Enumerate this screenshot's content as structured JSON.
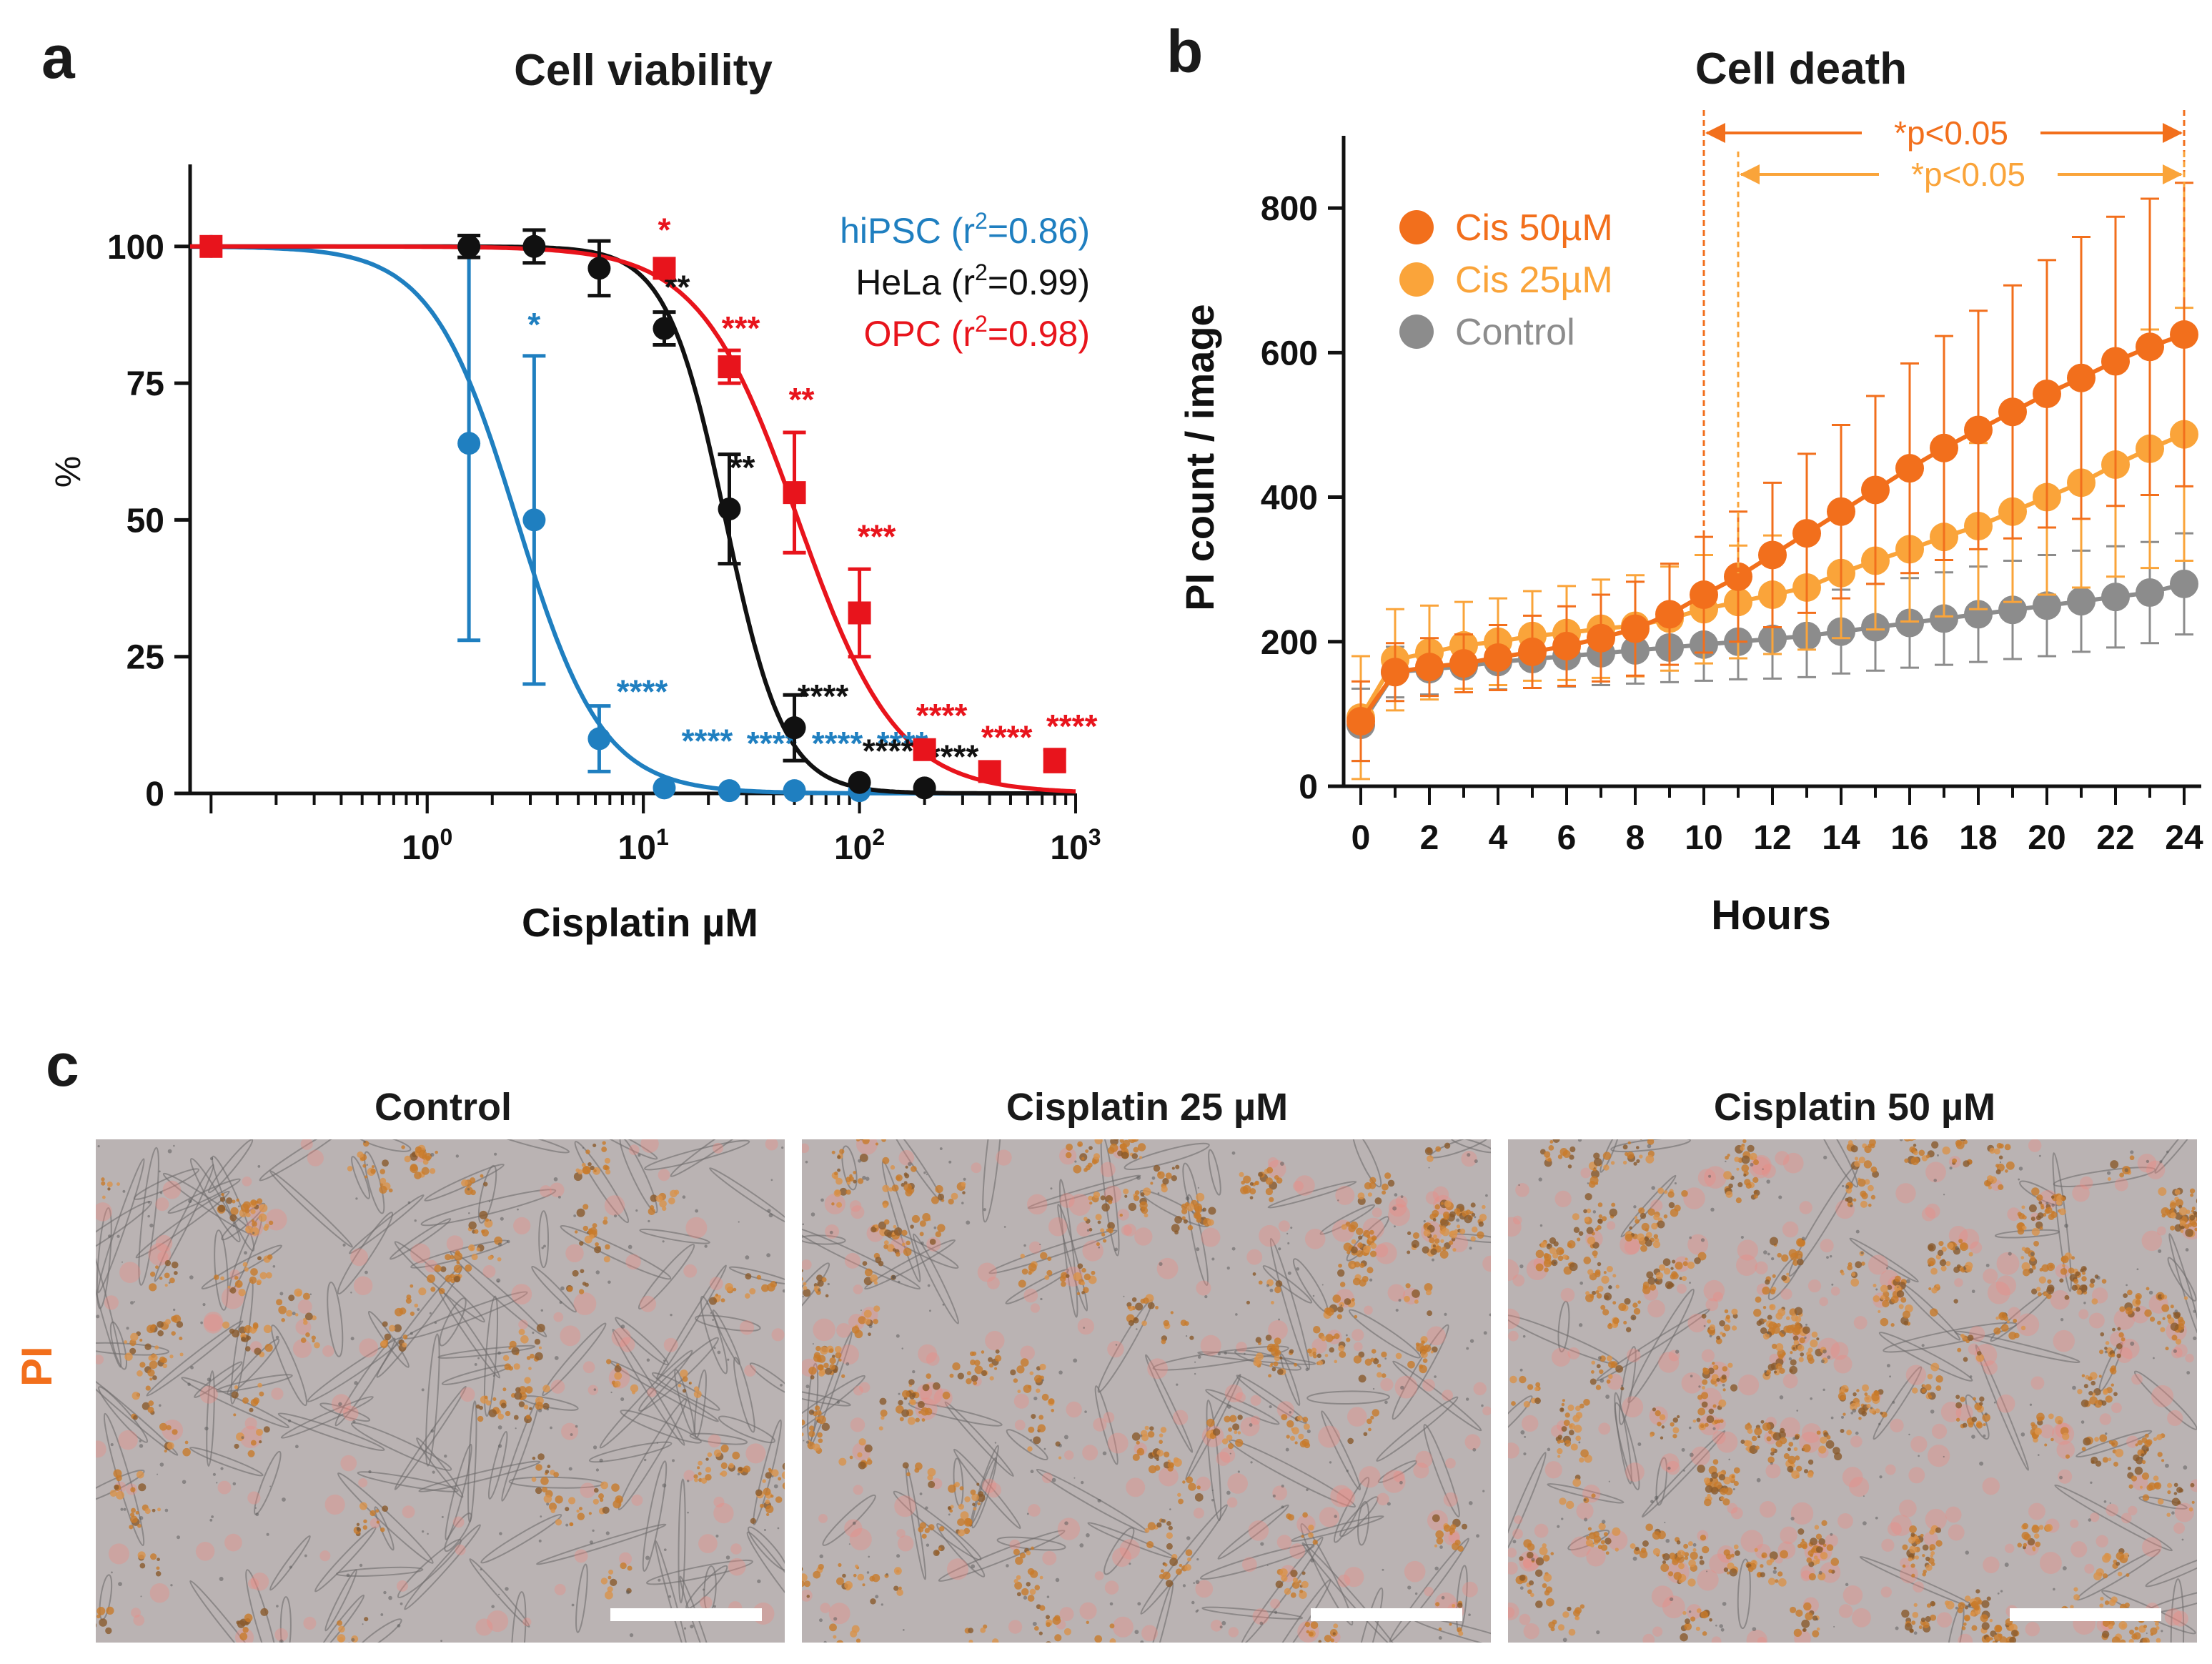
{
  "panel_labels": {
    "a": "a",
    "b": "b",
    "c": "c"
  },
  "chart_data": [
    {
      "type": "line",
      "panel": "a",
      "title": "Cell viability",
      "xlabel": "Cisplatin µM",
      "ylabel": "%",
      "xscale": "log",
      "xlim": [
        0.08,
        1000
      ],
      "ylim": [
        0,
        115
      ],
      "yticks": [
        "0",
        "25",
        "50",
        "75",
        "100"
      ],
      "xticks": [
        {
          "base": "10",
          "exp": "0"
        },
        {
          "base": "10",
          "exp": "1"
        },
        {
          "base": "10",
          "exp": "2"
        },
        {
          "base": "10",
          "exp": "3"
        }
      ],
      "legend_position": "top-right",
      "series": [
        {
          "name": "hiPSC",
          "legend": "hiPSC (r²=0.86)",
          "legend_main": "hiPSC (r",
          "legend_sup": "2",
          "legend_tail": "=0.86)",
          "color": "#1f7fc0",
          "marker": "circle",
          "ic50": 2.6,
          "hill": 2.2,
          "points": [
            {
              "x": 0.1,
              "y": 100,
              "err": 0,
              "sig": ""
            },
            {
              "x": 1.56,
              "y": 64,
              "err": 36,
              "sig": ""
            },
            {
              "x": 3.125,
              "y": 50,
              "err": 30,
              "sig": "*"
            },
            {
              "x": 6.25,
              "y": 10,
              "err": 6,
              "sig": "****"
            },
            {
              "x": 12.5,
              "y": 1,
              "err": 0,
              "sig": "****"
            },
            {
              "x": 25,
              "y": 0.5,
              "err": 0,
              "sig": "****"
            },
            {
              "x": 50,
              "y": 0.5,
              "err": 0,
              "sig": "****"
            },
            {
              "x": 100,
              "y": 0.5,
              "err": 0,
              "sig": "****"
            }
          ]
        },
        {
          "name": "HeLa",
          "legend": "HeLa (r²=0.99)",
          "legend_main": "HeLa (r",
          "legend_sup": "2",
          "legend_tail": "=0.99)",
          "color": "#111111",
          "marker": "circle",
          "ic50": 24,
          "hill": 3.2,
          "points": [
            {
              "x": 1.56,
              "y": 100,
              "err": 2,
              "sig": ""
            },
            {
              "x": 3.125,
              "y": 100,
              "err": 3,
              "sig": ""
            },
            {
              "x": 6.25,
              "y": 96,
              "err": 5,
              "sig": ""
            },
            {
              "x": 12.5,
              "y": 85,
              "err": 3,
              "sig": "**"
            },
            {
              "x": 25,
              "y": 52,
              "err": 10,
              "sig": "**"
            },
            {
              "x": 50,
              "y": 12,
              "err": 6,
              "sig": "****"
            },
            {
              "x": 100,
              "y": 2,
              "err": 0,
              "sig": "****"
            },
            {
              "x": 200,
              "y": 1,
              "err": 0,
              "sig": "****"
            }
          ]
        },
        {
          "name": "OPC",
          "legend": "OPC (r²=0.98)",
          "legend_main": "OPC (r",
          "legend_sup": "2",
          "legend_tail": "=0.98)",
          "color": "#e8141c",
          "marker": "square",
          "ic50": 52,
          "hill": 1.9,
          "points": [
            {
              "x": 0.1,
              "y": 100,
              "err": 0,
              "sig": ""
            },
            {
              "x": 12.5,
              "y": 96,
              "err": 0,
              "sig": "*"
            },
            {
              "x": 25,
              "y": 78,
              "err": 3,
              "sig": "***"
            },
            {
              "x": 50,
              "y": 55,
              "err": 11,
              "sig": "**"
            },
            {
              "x": 100,
              "y": 33,
              "err": 8,
              "sig": "***"
            },
            {
              "x": 200,
              "y": 8,
              "err": 0,
              "sig": "****"
            },
            {
              "x": 400,
              "y": 4,
              "err": 0,
              "sig": "****"
            },
            {
              "x": 800,
              "y": 6,
              "err": 2,
              "sig": "****"
            }
          ]
        }
      ]
    },
    {
      "type": "line",
      "panel": "b",
      "title": "Cell death",
      "xlabel": "Hours",
      "ylabel": "PI count / image",
      "xlim": [
        -0.5,
        24.5
      ],
      "ylim": [
        0,
        900
      ],
      "xticks": [
        "0",
        "2",
        "4",
        "6",
        "8",
        "10",
        "12",
        "14",
        "16",
        "18",
        "20",
        "22",
        "24"
      ],
      "yticks": [
        "0",
        "200",
        "400",
        "600",
        "800"
      ],
      "legend_position": "top-left",
      "x": [
        0,
        1,
        2,
        3,
        4,
        5,
        6,
        7,
        8,
        9,
        10,
        11,
        12,
        13,
        14,
        15,
        16,
        17,
        18,
        19,
        20,
        21,
        22,
        23,
        24
      ],
      "series": [
        {
          "name": "Cis 50µM",
          "color": "#f26f1c",
          "values": [
            90,
            158,
            165,
            170,
            178,
            186,
            194,
            205,
            218,
            238,
            265,
            290,
            320,
            350,
            380,
            410,
            440,
            468,
            493,
            518,
            543,
            565,
            588,
            608,
            625
          ],
          "errors": [
            55,
            40,
            40,
            40,
            45,
            50,
            55,
            60,
            65,
            70,
            80,
            90,
            100,
            110,
            120,
            130,
            145,
            155,
            165,
            175,
            185,
            195,
            200,
            205,
            210
          ]
        },
        {
          "name": "Cis 25µM",
          "color": "#faa43a",
          "values": [
            95,
            175,
            185,
            195,
            200,
            208,
            212,
            218,
            222,
            232,
            245,
            255,
            265,
            275,
            295,
            312,
            328,
            345,
            360,
            380,
            400,
            420,
            445,
            467,
            487
          ],
          "errors": [
            85,
            70,
            65,
            60,
            60,
            62,
            65,
            68,
            70,
            72,
            75,
            78,
            82,
            86,
            90,
            95,
            100,
            110,
            115,
            125,
            135,
            145,
            155,
            165,
            175
          ]
        },
        {
          "name": "Control",
          "color": "#8c8c8c",
          "values": [
            85,
            158,
            162,
            166,
            172,
            176,
            180,
            184,
            188,
            192,
            196,
            200,
            204,
            208,
            214,
            220,
            226,
            232,
            238,
            244,
            250,
            256,
            262,
            268,
            280
          ],
          "errors": [
            50,
            35,
            35,
            36,
            38,
            40,
            42,
            44,
            46,
            48,
            50,
            52,
            55,
            57,
            58,
            60,
            62,
            64,
            66,
            68,
            70,
            70,
            70,
            70,
            70
          ]
        }
      ],
      "annotations": [
        {
          "text": "*p<0.05",
          "from": 10,
          "to": 24,
          "color": "#f26f1c"
        },
        {
          "text": "*p<0.05",
          "from": 11,
          "to": 24,
          "color": "#faa43a"
        }
      ]
    }
  ],
  "panel_c": {
    "side_label": "PI",
    "images": [
      {
        "title": "Control",
        "density": 0.45
      },
      {
        "title": "Cisplatin 25 µM",
        "density": 0.75
      },
      {
        "title": "Cisplatin 50 µM",
        "density": 1.0
      }
    ]
  }
}
